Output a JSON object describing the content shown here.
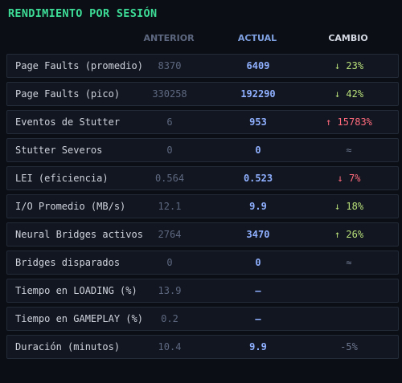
{
  "title": "RENDIMIENTO POR SESIÓN",
  "headers": {
    "previous": "ANTERIOR",
    "current": "ACTUAL",
    "change": "CAMBIO"
  },
  "rows": [
    {
      "label": "Page Faults (promedio)",
      "previous": "8370",
      "current": "6409",
      "change": "↓ 23%",
      "tone": "good"
    },
    {
      "label": "Page Faults (pico)",
      "previous": "330258",
      "current": "192290",
      "change": "↓ 42%",
      "tone": "good"
    },
    {
      "label": "Eventos de Stutter",
      "previous": "6",
      "current": "953",
      "change": "↑ 15783%",
      "tone": "bad"
    },
    {
      "label": "Stutter Severos",
      "previous": "0",
      "current": "0",
      "change": "≈",
      "tone": "neutral"
    },
    {
      "label": "LEI (eficiencia)",
      "previous": "0.564",
      "current": "0.523",
      "change": "↓ 7%",
      "tone": "bad"
    },
    {
      "label": "I/O Promedio (MB/s)",
      "previous": "12.1",
      "current": "9.9",
      "change": "↓ 18%",
      "tone": "good"
    },
    {
      "label": "Neural Bridges activos",
      "previous": "2764",
      "current": "3470",
      "change": "↑ 26%",
      "tone": "good"
    },
    {
      "label": "Bridges disparados",
      "previous": "0",
      "current": "0",
      "change": "≈",
      "tone": "neutral"
    },
    {
      "label": "Tiempo en LOADING (%)",
      "previous": "13.9",
      "current": "—",
      "change": "",
      "tone": "neutral"
    },
    {
      "label": "Tiempo en GAMEPLAY (%)",
      "previous": "0.2",
      "current": "—",
      "change": "",
      "tone": "neutral"
    },
    {
      "label": "Duración (minutos)",
      "previous": "10.4",
      "current": "9.9",
      "change": "-5%",
      "tone": "muted"
    }
  ]
}
